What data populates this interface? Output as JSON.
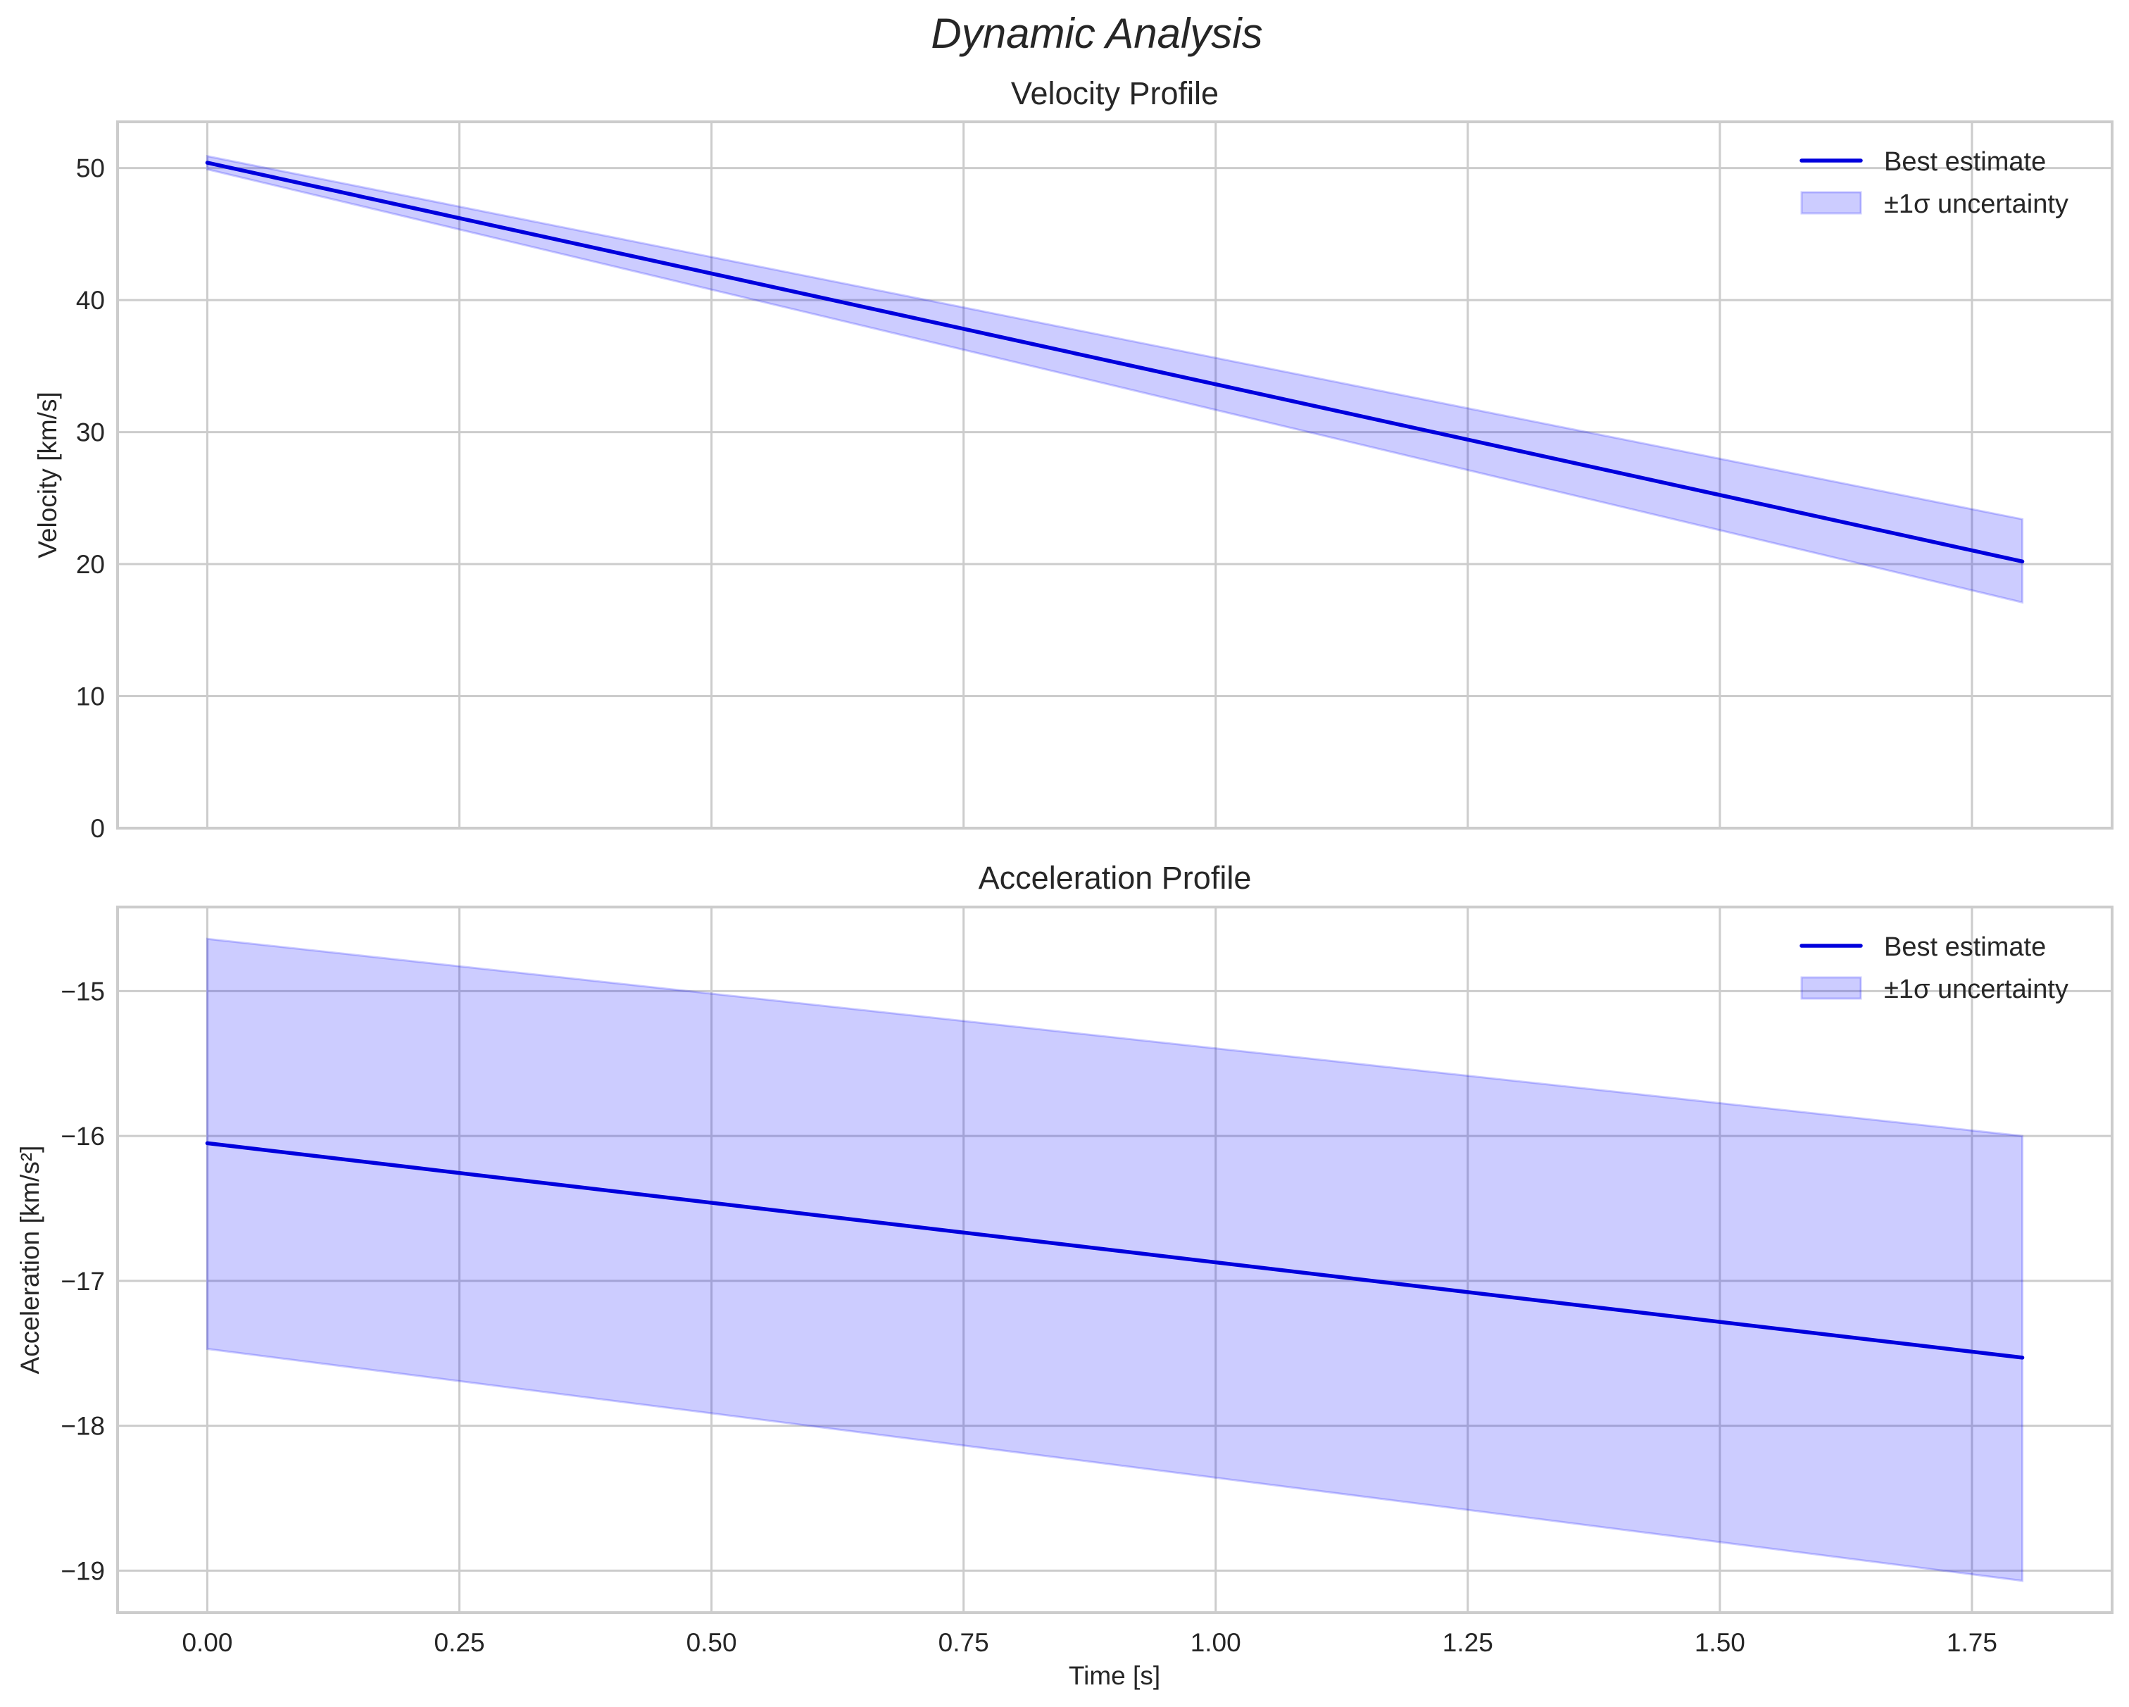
{
  "figure": {
    "suptitle": "Dynamic Analysis",
    "xlabel": "Time [s]"
  },
  "colors": {
    "line": "#0000dd",
    "band_fill": "#0000ff",
    "band_alpha": 0.2,
    "grid": "#cccccc",
    "frame": "#cccccc",
    "text": "#262626"
  },
  "legend": {
    "line_label": "Best estimate",
    "band_label": "±1σ uncertainty"
  },
  "chart_data": [
    {
      "type": "line",
      "title": "Velocity Profile",
      "xlabel": "",
      "ylabel": "Velocity [km/s]",
      "xlim": [
        -0.089,
        1.889
      ],
      "ylim": [
        0,
        53.5
      ],
      "xticks": [
        0.0,
        0.25,
        0.5,
        0.75,
        1.0,
        1.25,
        1.5,
        1.75
      ],
      "xticklabels_visible": false,
      "yticks": [
        0,
        10,
        20,
        30,
        40,
        50
      ],
      "grid": true,
      "legend_position": "upper right",
      "x": [
        0.0,
        1.8
      ],
      "series": [
        {
          "name": "Best estimate",
          "values": [
            50.4,
            20.2
          ]
        },
        {
          "name": "±1σ uncertainty (upper)",
          "values": [
            50.9,
            23.4
          ]
        },
        {
          "name": "±1σ uncertainty (lower)",
          "values": [
            49.9,
            17.1
          ]
        }
      ]
    },
    {
      "type": "line",
      "title": "Acceleration Profile",
      "xlabel": "Time [s]",
      "ylabel": "Acceleration [km/s²]",
      "xlim": [
        -0.089,
        1.889
      ],
      "ylim": [
        -19.29,
        -14.42
      ],
      "xticks": [
        0.0,
        0.25,
        0.5,
        0.75,
        1.0,
        1.25,
        1.5,
        1.75
      ],
      "xticklabels": [
        "0.00",
        "0.25",
        "0.50",
        "0.75",
        "1.00",
        "1.25",
        "1.50",
        "1.75"
      ],
      "yticks": [
        -19,
        -18,
        -17,
        -16,
        -15
      ],
      "yticklabels": [
        "−19",
        "−18",
        "−17",
        "−16",
        "−15"
      ],
      "grid": true,
      "legend_position": "upper right",
      "x": [
        0.0,
        1.8
      ],
      "series": [
        {
          "name": "Best estimate",
          "values": [
            -16.05,
            -17.53
          ]
        },
        {
          "name": "±1σ uncertainty (upper)",
          "values": [
            -14.64,
            -16.0
          ]
        },
        {
          "name": "±1σ uncertainty (lower)",
          "values": [
            -17.47,
            -19.07
          ]
        }
      ]
    }
  ]
}
